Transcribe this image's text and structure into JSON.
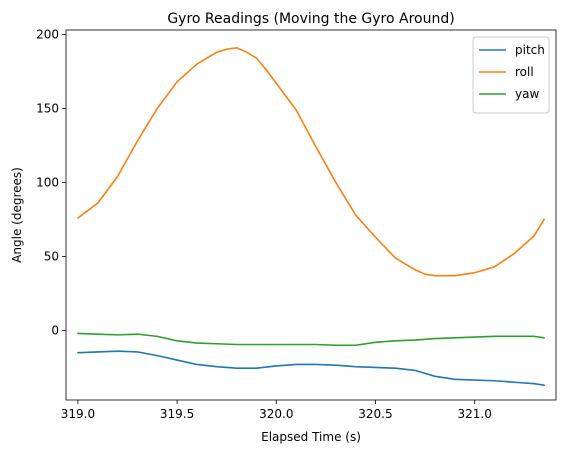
{
  "chart_data": {
    "type": "line",
    "title": "Gyro Readings (Moving the Gyro Around)",
    "xlabel": "Elapsed Time (s)",
    "ylabel": "Angle (degrees)",
    "xlim": [
      318.94,
      321.41
    ],
    "ylim": [
      -47,
      203
    ],
    "xticks": [
      319.0,
      319.5,
      320.0,
      320.5,
      321.0
    ],
    "xtick_labels": [
      "319.0",
      "319.5",
      "320.0",
      "320.5",
      "321.0"
    ],
    "yticks": [
      0,
      50,
      100,
      150,
      200
    ],
    "ytick_labels": [
      "0",
      "50",
      "100",
      "150",
      "200"
    ],
    "grid": false,
    "legend_position": "top-right",
    "series": [
      {
        "name": "pitch",
        "color": "#1f77b4",
        "x": [
          319.0,
          319.1,
          319.2,
          319.3,
          319.4,
          319.5,
          319.6,
          319.7,
          319.8,
          319.9,
          320.0,
          320.1,
          320.2,
          320.3,
          320.4,
          320.5,
          320.6,
          320.7,
          320.8,
          320.9,
          321.0,
          321.1,
          321.2,
          321.3,
          321.35
        ],
        "values": [
          -15,
          -14.5,
          -14,
          -14.5,
          -17,
          -20,
          -23,
          -24.5,
          -25.5,
          -25.5,
          -24,
          -23,
          -23,
          -23.5,
          -24.5,
          -25,
          -25.5,
          -27,
          -31,
          -33,
          -33.5,
          -34,
          -35,
          -36,
          -37
        ]
      },
      {
        "name": "roll",
        "color": "#ff7f0e",
        "x": [
          319.0,
          319.1,
          319.2,
          319.3,
          319.4,
          319.5,
          319.6,
          319.7,
          319.75,
          319.8,
          319.85,
          319.9,
          319.95,
          320.0,
          320.1,
          320.2,
          320.3,
          320.4,
          320.5,
          320.6,
          320.7,
          320.75,
          320.8,
          320.85,
          320.9,
          321.0,
          321.1,
          321.2,
          321.3,
          321.35
        ],
        "values": [
          76,
          86,
          104,
          128,
          150,
          168,
          180,
          188,
          190,
          191,
          188,
          184,
          176,
          167,
          149,
          124,
          100,
          78,
          63,
          49,
          41,
          38,
          37,
          37,
          37,
          39,
          43,
          52,
          64,
          75
        ]
      },
      {
        "name": "yaw",
        "color": "#2ca02c",
        "x": [
          319.0,
          319.1,
          319.2,
          319.3,
          319.4,
          319.5,
          319.6,
          319.7,
          319.8,
          319.9,
          320.0,
          320.1,
          320.2,
          320.3,
          320.4,
          320.5,
          320.6,
          320.7,
          320.8,
          320.9,
          321.0,
          321.1,
          321.2,
          321.3,
          321.35
        ],
        "values": [
          -2,
          -2.5,
          -3,
          -2.5,
          -4,
          -7,
          -8.5,
          -9,
          -9.5,
          -9.5,
          -9.5,
          -9.5,
          -9.5,
          -10,
          -10,
          -8,
          -7,
          -6.5,
          -5.5,
          -5,
          -4.5,
          -4,
          -4,
          -4,
          -5
        ]
      }
    ]
  }
}
